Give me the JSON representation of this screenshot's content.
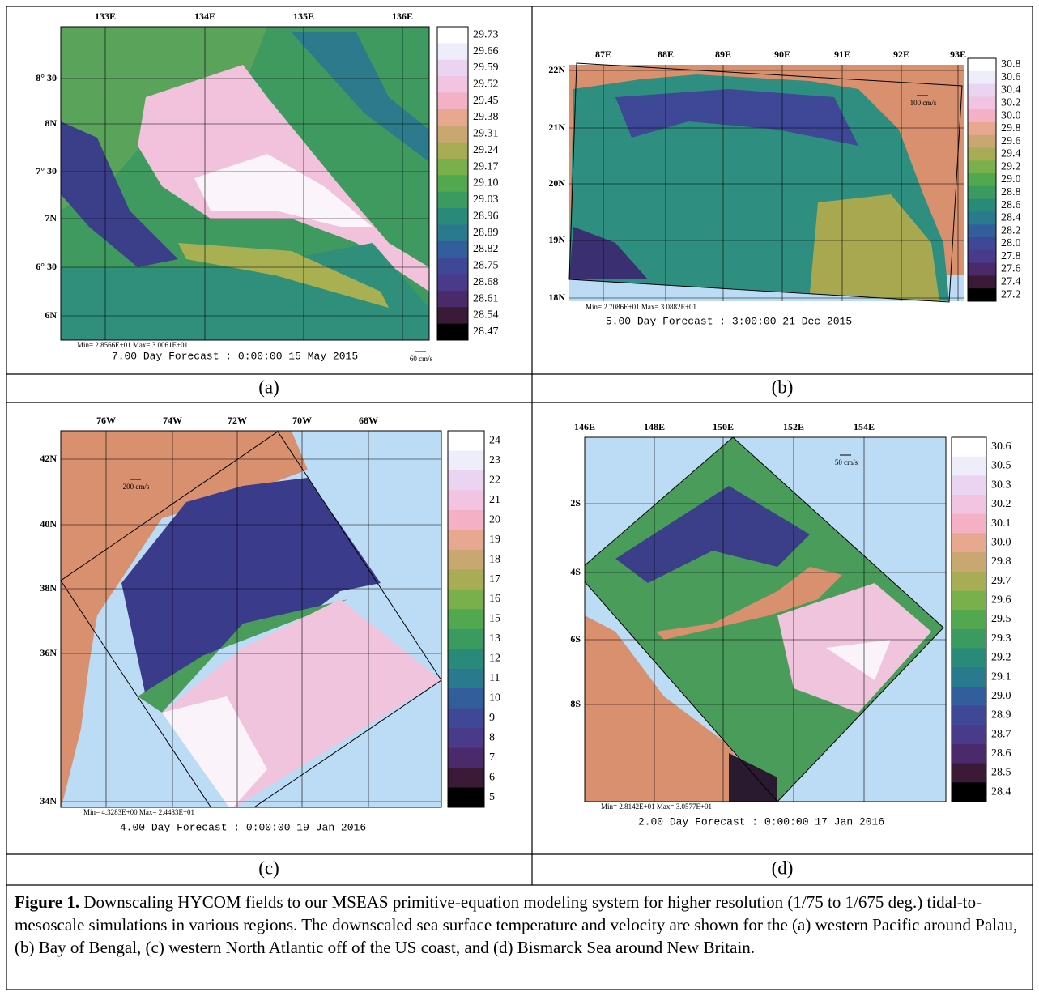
{
  "panels": [
    {
      "label": "(a)",
      "xaxis": [
        "133E",
        "134E",
        "135E",
        "136E"
      ],
      "yaxis": [
        "8° 30",
        "8N",
        "7° 30",
        "7N",
        "6° 30",
        "6N"
      ],
      "colorbar": [
        "29.73",
        "29.66",
        "29.59",
        "29.52",
        "29.45",
        "29.38",
        "29.31",
        "29.24",
        "29.17",
        "29.10",
        "29.03",
        "28.96",
        "28.89",
        "28.82",
        "28.75",
        "28.68",
        "28.61",
        "28.54",
        "28.47"
      ],
      "stats": "Min= 2.8566E+01   Max= 3.0061E+01",
      "forecast": "7.00 Day Forecast :  0:00:00   15 May 2015",
      "scale": "60 cm/s"
    },
    {
      "label": "(b)",
      "xaxis": [
        "87E",
        "88E",
        "89E",
        "90E",
        "91E",
        "92E",
        "93E"
      ],
      "yaxis": [
        "22N",
        "21N",
        "20N",
        "19N",
        "18N"
      ],
      "colorbar": [
        "30.8",
        "30.6",
        "30.4",
        "30.2",
        "30.0",
        "29.8",
        "29.6",
        "29.4",
        "29.2",
        "29.0",
        "28.8",
        "28.6",
        "28.4",
        "28.2",
        "28.0",
        "27.8",
        "27.6",
        "27.4",
        "27.2"
      ],
      "stats": "Min= 2.7086E+01   Max= 3.0882E+01",
      "forecast": "5.00 Day Forecast :  3:00:00   21 Dec 2015",
      "scale": "100 cm/s"
    },
    {
      "label": "(c)",
      "xaxis": [
        "76W",
        "74W",
        "72W",
        "70W",
        "68W"
      ],
      "yaxis": [
        "42N",
        "40N",
        "38N",
        "36N",
        "34N"
      ],
      "colorbar": [
        "24",
        "23",
        "22",
        "21",
        "20",
        "19",
        "18",
        "17",
        "16",
        "15",
        "13",
        "12",
        "11",
        "10",
        "9",
        "8",
        "7",
        "6",
        "5"
      ],
      "stats": "Min= 4.3283E+00   Max= 2.4483E+01",
      "forecast": "4.00 Day Forecast :  0:00:00   19 Jan 2016",
      "scale": "200 cm/s"
    },
    {
      "label": "(d)",
      "xaxis": [
        "146E",
        "148E",
        "150E",
        "152E",
        "154E"
      ],
      "yaxis": [
        "2S",
        "4S",
        "6S",
        "8S"
      ],
      "colorbar": [
        "30.6",
        "30.5",
        "30.3",
        "30.2",
        "30.1",
        "30.0",
        "29.8",
        "29.7",
        "29.6",
        "29.5",
        "29.3",
        "29.2",
        "29.1",
        "29.0",
        "28.9",
        "28.7",
        "28.6",
        "28.5",
        "28.4"
      ],
      "stats": "Min= 2.8142E+01   Max= 3.0577E+01",
      "forecast": "2.00 Day Forecast :  0:00:00   17 Jan 2016",
      "scale": "50 cm/s"
    }
  ],
  "caption": {
    "bold": "Figure 1.",
    "text": " Downscaling HYCOM fields to our MSEAS primitive-equation modeling system for higher resolution (1/75 to 1/675 deg.) tidal-to-mesoscale simulations in various regions. The downscaled sea surface temperature and velocity are shown for the (a) western Pacific around Palau, (b) Bay of Bengal, (c) western North Atlantic off of the US coast, and (d) Bismarck Sea around New Britain."
  }
}
